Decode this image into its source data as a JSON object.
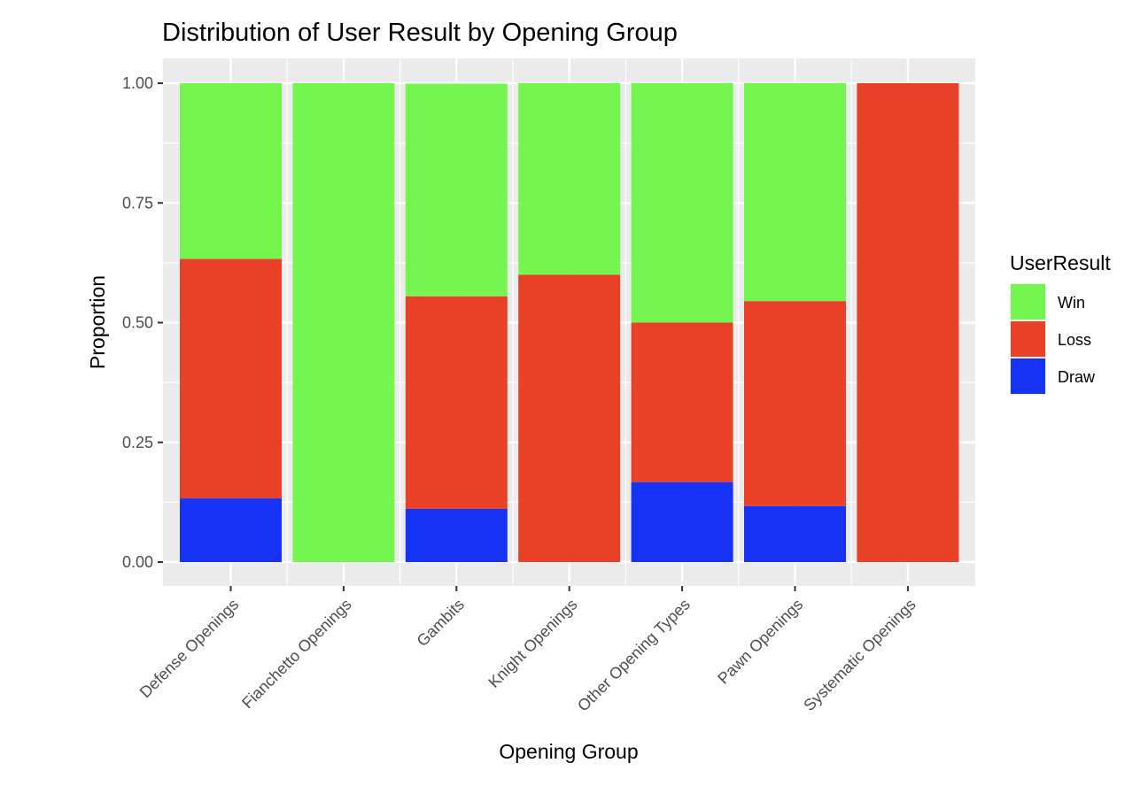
{
  "chart_data": {
    "type": "bar",
    "stacked": true,
    "title": "Distribution of User Result by Opening Group",
    "xlabel": "Opening Group",
    "ylabel": "Proportion",
    "ylim": [
      0,
      1
    ],
    "yticks": [
      "0.00",
      "0.25",
      "0.50",
      "0.75",
      "1.00"
    ],
    "ytick_values": [
      0,
      0.25,
      0.5,
      0.75,
      1.0
    ],
    "grid": true,
    "panel_background": "#ebebeb",
    "legend": {
      "title": "UserResult",
      "position": "right"
    },
    "categories": [
      "Defense Openings",
      "Fianchetto Openings",
      "Gambits",
      "Knight Openings",
      "Other Opening Types",
      "Pawn Openings",
      "Systematic Openings"
    ],
    "series": [
      {
        "name": "Win",
        "color": "#74f54f",
        "values": [
          0.367,
          1.0,
          0.444,
          0.4,
          0.5,
          0.455,
          0.0
        ]
      },
      {
        "name": "Loss",
        "color": "#e84128",
        "values": [
          0.5,
          0.0,
          0.444,
          0.6,
          0.333,
          0.428,
          1.0
        ]
      },
      {
        "name": "Draw",
        "color": "#1633f5",
        "values": [
          0.133,
          0.0,
          0.111,
          0.0,
          0.167,
          0.117,
          0.0
        ]
      }
    ],
    "stack_order_bottom_to_top": [
      "Draw",
      "Loss",
      "Win"
    ]
  }
}
